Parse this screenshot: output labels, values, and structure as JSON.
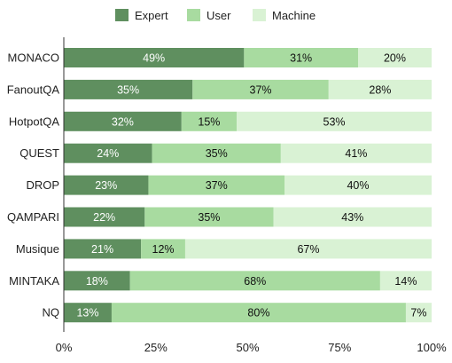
{
  "chart_data": {
    "type": "bar",
    "orientation": "horizontal",
    "stacked": true,
    "categories": [
      "MONACO",
      "FanoutQA",
      "HotpotQA",
      "QUEST",
      "DROP",
      "QAMPARI",
      "Musique",
      "MINTAKA",
      "NQ"
    ],
    "series": [
      {
        "name": "Expert",
        "color": "#5f8f5f",
        "label_color": "#ffffff",
        "values": [
          49,
          35,
          32,
          24,
          23,
          22,
          21,
          18,
          13
        ]
      },
      {
        "name": "User",
        "color": "#a8dba0",
        "label_color": "#111111",
        "values": [
          31,
          37,
          15,
          35,
          37,
          35,
          12,
          68,
          80
        ]
      },
      {
        "name": "Machine",
        "color": "#d9f2d4",
        "label_color": "#111111",
        "values": [
          20,
          28,
          53,
          41,
          40,
          43,
          67,
          14,
          7
        ]
      }
    ],
    "value_suffix": "%",
    "xlim": [
      0,
      100
    ],
    "xticks": [
      "0%",
      "25%",
      "50%",
      "75%",
      "100%"
    ],
    "legend_position": "top",
    "grid": false
  }
}
